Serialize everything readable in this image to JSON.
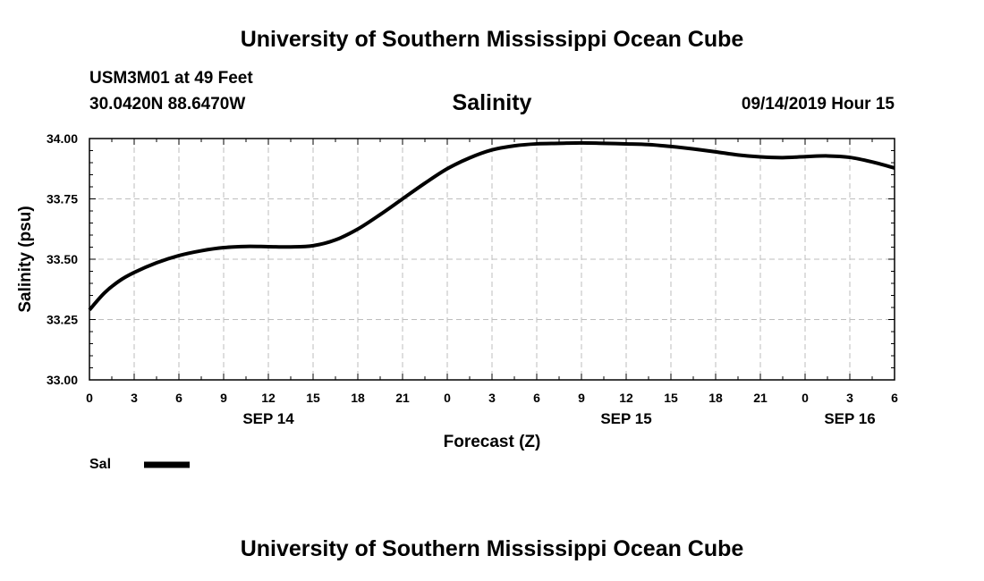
{
  "header": {
    "title": "University of Southern Mississippi Ocean Cube",
    "station": "USM3M01 at 49 Feet",
    "coords": "30.0420N 88.6470W",
    "timestamp": "09/14/2019 Hour 15"
  },
  "footer": {
    "title": "University of Southern Mississippi Ocean Cube"
  },
  "legend": {
    "label": "Sal"
  },
  "chart_data": {
    "type": "line",
    "title": "Salinity",
    "xlabel": "Forecast (Z)",
    "ylabel": "Salinity (psu)",
    "xlim": [
      0,
      54
    ],
    "ylim": [
      33.0,
      34.0
    ],
    "y_ticks": [
      {
        "v": 33.0,
        "label": "33.00"
      },
      {
        "v": 33.25,
        "label": "33.25"
      },
      {
        "v": 33.5,
        "label": "33.50"
      },
      {
        "v": 33.75,
        "label": "33.75"
      },
      {
        "v": 34.0,
        "label": "34.00"
      }
    ],
    "x_ticks": [
      {
        "v": 0,
        "label": "0"
      },
      {
        "v": 3,
        "label": "3"
      },
      {
        "v": 6,
        "label": "6"
      },
      {
        "v": 9,
        "label": "9"
      },
      {
        "v": 12,
        "label": "12"
      },
      {
        "v": 15,
        "label": "15"
      },
      {
        "v": 18,
        "label": "18"
      },
      {
        "v": 21,
        "label": "21"
      },
      {
        "v": 24,
        "label": "0"
      },
      {
        "v": 27,
        "label": "3"
      },
      {
        "v": 30,
        "label": "6"
      },
      {
        "v": 33,
        "label": "9"
      },
      {
        "v": 36,
        "label": "12"
      },
      {
        "v": 39,
        "label": "15"
      },
      {
        "v": 42,
        "label": "18"
      },
      {
        "v": 45,
        "label": "21"
      },
      {
        "v": 48,
        "label": "0"
      },
      {
        "v": 51,
        "label": "3"
      },
      {
        "v": 54,
        "label": "6"
      }
    ],
    "date_labels": [
      {
        "v": 12,
        "label": "SEP 14"
      },
      {
        "v": 36,
        "label": "SEP 15"
      },
      {
        "v": 51,
        "label": "SEP 16"
      }
    ],
    "series": [
      {
        "name": "Sal",
        "color": "#000000",
        "x": [
          0,
          1,
          2,
          3,
          4.5,
          6,
          7.5,
          9,
          10.5,
          12,
          13.5,
          15,
          16.5,
          18,
          19.5,
          21,
          22.5,
          24,
          25.5,
          27,
          28.5,
          30,
          31.5,
          33,
          34.5,
          36,
          37.5,
          39,
          40.5,
          42,
          43.5,
          45,
          46.5,
          48,
          49.5,
          51,
          52.5,
          54
        ],
        "y": [
          33.29,
          33.36,
          33.41,
          33.445,
          33.485,
          33.515,
          33.535,
          33.548,
          33.553,
          33.552,
          33.551,
          33.556,
          33.58,
          33.625,
          33.685,
          33.75,
          33.815,
          33.875,
          33.92,
          33.953,
          33.97,
          33.978,
          33.98,
          33.982,
          33.98,
          33.978,
          33.975,
          33.967,
          33.957,
          33.945,
          33.932,
          33.924,
          33.921,
          33.925,
          33.928,
          33.922,
          33.903,
          33.878
        ]
      }
    ]
  }
}
